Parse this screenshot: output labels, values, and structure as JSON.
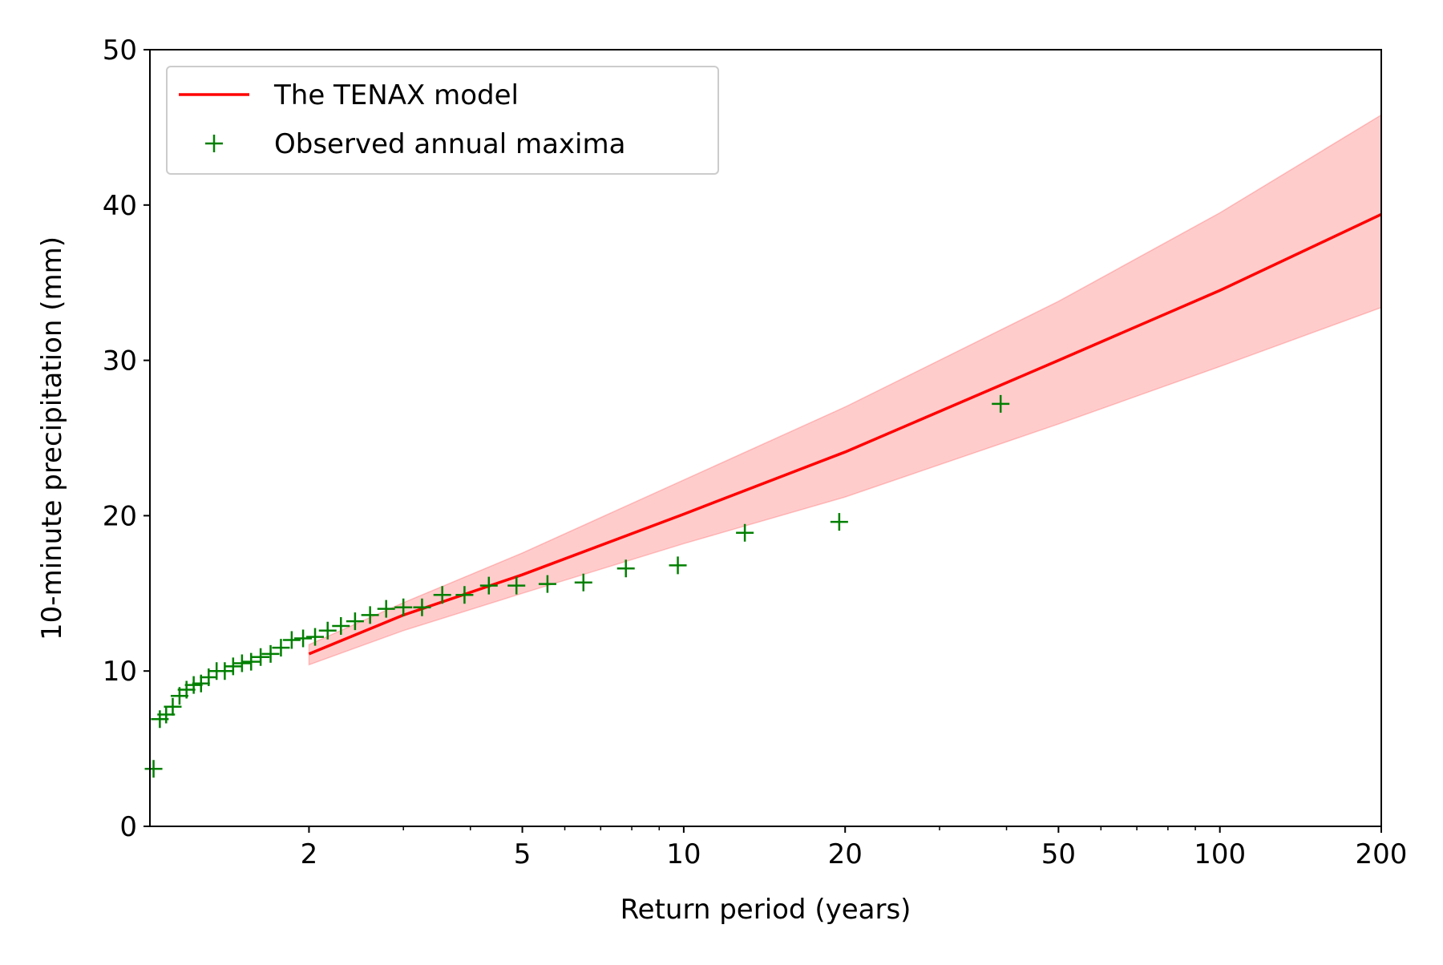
{
  "chart_data": {
    "type": "line",
    "xlabel": "Return period (years)",
    "ylabel": "10-minute precipitation (mm)",
    "xscale": "log",
    "xlim": [
      1.01,
      200
    ],
    "ylim": [
      0,
      50
    ],
    "xticks": [
      2,
      5,
      10,
      20,
      50,
      100,
      200
    ],
    "xticks_minor": [
      3,
      4,
      6,
      7,
      8,
      9,
      30,
      40,
      60,
      70,
      80,
      90
    ],
    "yticks": [
      0,
      10,
      20,
      30,
      40,
      50
    ],
    "grid": false,
    "legend": "upper left",
    "series": [
      {
        "name": "The TENAX model",
        "type": "line",
        "color": "#ff0000",
        "band_color": "#ff0000",
        "x": [
          2,
          3,
          5,
          10,
          20,
          50,
          100,
          200
        ],
        "values": [
          11.1,
          13.6,
          16.2,
          20.1,
          24.1,
          30.0,
          34.5,
          39.4
        ],
        "lower": [
          10.4,
          12.6,
          15.0,
          18.2,
          21.2,
          25.9,
          29.6,
          33.4
        ],
        "upper": [
          11.7,
          14.4,
          17.6,
          22.3,
          27.0,
          33.8,
          39.5,
          45.8
        ]
      },
      {
        "name": "Observed annual maxima",
        "type": "scatter",
        "marker": "+",
        "color": "#008000",
        "x": [
          39,
          19.5,
          13,
          9.75,
          7.8,
          6.5,
          5.57,
          4.875,
          4.33,
          3.9,
          3.545,
          3.25,
          3.0,
          2.786,
          2.6,
          2.4375,
          2.294,
          2.167,
          2.053,
          1.95,
          1.857,
          1.773,
          1.696,
          1.625,
          1.56,
          1.5,
          1.444,
          1.393,
          1.345,
          1.3,
          1.258,
          1.219,
          1.182,
          1.147,
          1.114,
          1.083,
          1.054,
          1.026
        ],
        "values": [
          27.2,
          19.6,
          18.9,
          16.8,
          16.6,
          15.7,
          15.6,
          15.5,
          15.5,
          14.9,
          14.9,
          14.1,
          14.1,
          14.0,
          13.6,
          13.2,
          12.9,
          12.6,
          12.2,
          12.1,
          12.0,
          11.5,
          11.1,
          10.9,
          10.6,
          10.5,
          10.3,
          10.0,
          10.0,
          9.6,
          9.2,
          9.1,
          8.8,
          8.4,
          7.7,
          7.2,
          6.9,
          3.7
        ]
      }
    ]
  }
}
